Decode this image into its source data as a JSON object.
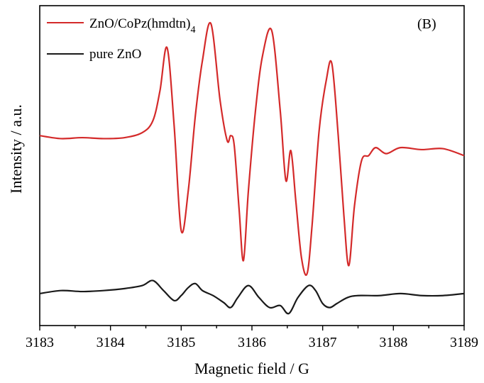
{
  "chart_data": {
    "type": "line",
    "title": "",
    "panel_label": "(B)",
    "xlabel": "Magnetic field / G",
    "ylabel": "Intensity / a.u.",
    "xlim": [
      3183,
      3189
    ],
    "ylim": [
      -1.9,
      1.3
    ],
    "xticks": [
      "3183",
      "3184",
      "3185",
      "3186",
      "3187",
      "3188",
      "3189"
    ],
    "yticks_shown": false,
    "grid": false,
    "legend_position": "top-left",
    "series": [
      {
        "name": "ZnO/CoPz(hmdtn)",
        "name_subscript": "4",
        "color": "#d42a2a",
        "x": [
          3183.0,
          3183.3,
          3183.6,
          3183.9,
          3184.2,
          3184.45,
          3184.6,
          3184.7,
          3184.8,
          3184.9,
          3185.0,
          3185.1,
          3185.2,
          3185.3,
          3185.42,
          3185.55,
          3185.65,
          3185.7,
          3185.75,
          3185.82,
          3185.88,
          3185.95,
          3186.05,
          3186.15,
          3186.28,
          3186.4,
          3186.48,
          3186.55,
          3186.62,
          3186.7,
          3186.78,
          3186.85,
          3186.95,
          3187.05,
          3187.13,
          3187.22,
          3187.3,
          3187.37,
          3187.45,
          3187.55,
          3187.65,
          3187.75,
          3187.9,
          3188.1,
          3188.4,
          3188.7,
          3189.0
        ],
        "values": [
          0.0,
          -0.03,
          -0.02,
          -0.03,
          -0.02,
          0.03,
          0.15,
          0.45,
          0.88,
          0.1,
          -0.95,
          -0.55,
          0.2,
          0.75,
          1.12,
          0.35,
          -0.05,
          0.0,
          -0.1,
          -0.75,
          -1.25,
          -0.55,
          0.25,
          0.8,
          1.05,
          0.25,
          -0.45,
          -0.15,
          -0.65,
          -1.22,
          -1.38,
          -0.9,
          0.05,
          0.55,
          0.72,
          0.0,
          -0.8,
          -1.3,
          -0.7,
          -0.25,
          -0.2,
          -0.12,
          -0.18,
          -0.12,
          -0.14,
          -0.13,
          -0.2
        ]
      },
      {
        "name": "pure ZnO",
        "color": "#1a1a1a",
        "x": [
          3183.0,
          3183.3,
          3183.6,
          3183.9,
          3184.2,
          3184.45,
          3184.6,
          3184.75,
          3184.9,
          3185.0,
          3185.1,
          3185.2,
          3185.3,
          3185.45,
          3185.6,
          3185.7,
          3185.8,
          3185.95,
          3186.1,
          3186.25,
          3186.4,
          3186.52,
          3186.65,
          3186.8,
          3186.9,
          3187.0,
          3187.1,
          3187.2,
          3187.35,
          3187.5,
          3187.8,
          3188.1,
          3188.4,
          3188.7,
          3189.0
        ],
        "values": [
          -1.58,
          -1.55,
          -1.56,
          -1.55,
          -1.53,
          -1.5,
          -1.45,
          -1.55,
          -1.65,
          -1.6,
          -1.52,
          -1.48,
          -1.55,
          -1.6,
          -1.67,
          -1.72,
          -1.62,
          -1.5,
          -1.62,
          -1.72,
          -1.7,
          -1.78,
          -1.62,
          -1.5,
          -1.55,
          -1.68,
          -1.72,
          -1.68,
          -1.62,
          -1.6,
          -1.6,
          -1.58,
          -1.6,
          -1.6,
          -1.58
        ]
      }
    ]
  }
}
